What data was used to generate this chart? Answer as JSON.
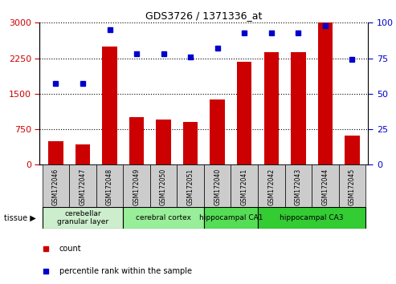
{
  "title": "GDS3726 / 1371336_at",
  "samples": [
    "GSM172046",
    "GSM172047",
    "GSM172048",
    "GSM172049",
    "GSM172050",
    "GSM172051",
    "GSM172040",
    "GSM172041",
    "GSM172042",
    "GSM172043",
    "GSM172044",
    "GSM172045"
  ],
  "counts": [
    500,
    430,
    2500,
    1000,
    950,
    900,
    1380,
    2180,
    2380,
    2380,
    3000,
    620
  ],
  "percentiles": [
    57,
    57,
    95,
    78,
    78,
    76,
    82,
    93,
    93,
    93,
    98,
    74
  ],
  "ylim_left": [
    0,
    3000
  ],
  "ylim_right": [
    0,
    100
  ],
  "yticks_left": [
    0,
    750,
    1500,
    2250,
    3000
  ],
  "yticks_right": [
    0,
    25,
    50,
    75,
    100
  ],
  "bar_color": "#cc0000",
  "dot_color": "#0000cc",
  "tissue_groups": [
    {
      "label": "cerebellar\ngranular layer",
      "indices": [
        0,
        1,
        2
      ],
      "color": "#cceecc"
    },
    {
      "label": "cerebral cortex",
      "indices": [
        3,
        4,
        5
      ],
      "color": "#99ee99"
    },
    {
      "label": "hippocampal CA1",
      "indices": [
        6,
        7
      ],
      "color": "#55dd55"
    },
    {
      "label": "hippocampal CA3",
      "indices": [
        8,
        9,
        10,
        11
      ],
      "color": "#33cc33"
    }
  ],
  "legend_bar_label": "count",
  "legend_dot_label": "percentile rank within the sample",
  "tick_color_left": "#cc0000",
  "tick_color_right": "#0000cc",
  "bg_color": "#ffffff",
  "xticklabel_bg": "#cccccc",
  "bar_width": 0.55
}
